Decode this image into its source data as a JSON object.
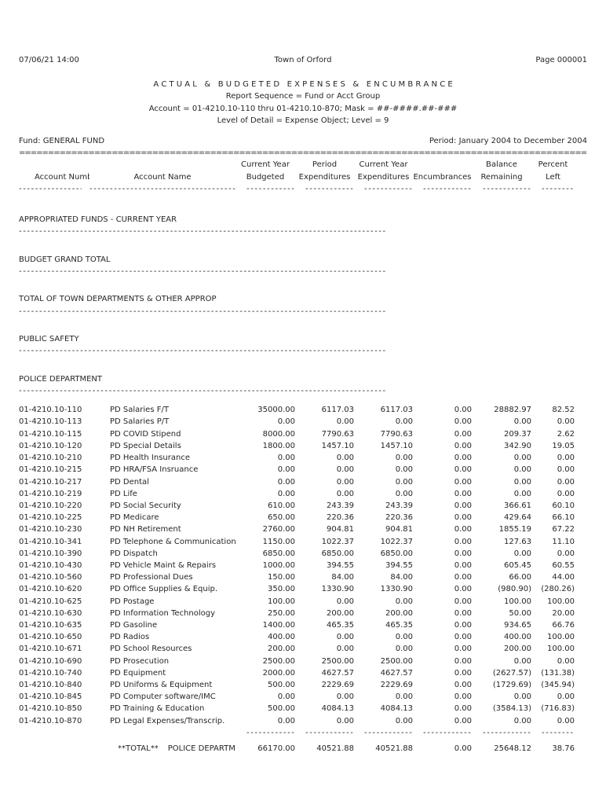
{
  "chars": {
    "dash": "-",
    "equals": "="
  },
  "header": {
    "datetime": "07/06/21 14:00",
    "town": "Town of Orford",
    "page": "Page 000001",
    "title": "A C T U A L   &   B U D G E T E D   E X P E N S E S   &   E N C U M B R A N C E",
    "sequence": "Report Sequence = Fund or Acct Group",
    "account_range": "Account = 01-4210.10-110 thru 01-4210.10-870; Mask = ##-####.##-###",
    "level_detail": "Level of Detail = Expense Object; Level = 9",
    "fund": "Fund: GENERAL FUND",
    "period": "Period: January 2004 to December 2004"
  },
  "table": {
    "columns": [
      {
        "line1": "",
        "line2": "Account Number"
      },
      {
        "line1": "",
        "line2": "Account Name"
      },
      {
        "line1": "Current Year",
        "line2": "Budgeted"
      },
      {
        "line1": "Period",
        "line2": "Expenditures"
      },
      {
        "line1": "Current Year",
        "line2": "Expenditures"
      },
      {
        "line1": "",
        "line2": "Encumbrances"
      },
      {
        "line1": "Balance",
        "line2": "Remaining"
      },
      {
        "line1": "Percent",
        "line2": "Left"
      }
    ],
    "sections": [
      "APPROPRIATED FUNDS - CURRENT YEAR",
      "BUDGET GRAND TOTAL",
      "TOTAL OF TOWN DEPARTMENTS & OTHER APPROP",
      "PUBLIC SAFETY",
      "POLICE DEPARTMENT"
    ],
    "rows": [
      [
        "01-4210.10-110",
        "PD Salaries F/T",
        "35000.00",
        "6117.03",
        "6117.03",
        "0.00",
        "28882.97",
        "82.52"
      ],
      [
        "01-4210.10-113",
        "PD Salaries P/T",
        "0.00",
        "0.00",
        "0.00",
        "0.00",
        "0.00",
        "0.00"
      ],
      [
        "01-4210.10-115",
        "PD COVID Stipend",
        "8000.00",
        "7790.63",
        "7790.63",
        "0.00",
        "209.37",
        "2.62"
      ],
      [
        "01-4210.10-120",
        "PD Special Details",
        "1800.00",
        "1457.10",
        "1457.10",
        "0.00",
        "342.90",
        "19.05"
      ],
      [
        "01-4210.10-210",
        "PD Health Insurance",
        "0.00",
        "0.00",
        "0.00",
        "0.00",
        "0.00",
        "0.00"
      ],
      [
        "01-4210.10-215",
        "PD HRA/FSA Insruance",
        "0.00",
        "0.00",
        "0.00",
        "0.00",
        "0.00",
        "0.00"
      ],
      [
        "01-4210.10-217",
        "PD Dental",
        "0.00",
        "0.00",
        "0.00",
        "0.00",
        "0.00",
        "0.00"
      ],
      [
        "01-4210.10-219",
        "PD Life",
        "0.00",
        "0.00",
        "0.00",
        "0.00",
        "0.00",
        "0.00"
      ],
      [
        "01-4210.10-220",
        "PD Social Security",
        "610.00",
        "243.39",
        "243.39",
        "0.00",
        "366.61",
        "60.10"
      ],
      [
        "01-4210.10-225",
        "PD Medicare",
        "650.00",
        "220.36",
        "220.36",
        "0.00",
        "429.64",
        "66.10"
      ],
      [
        "01-4210.10-230",
        "PD NH Retirement",
        "2760.00",
        "904.81",
        "904.81",
        "0.00",
        "1855.19",
        "67.22"
      ],
      [
        "01-4210.10-341",
        "PD Telephone & Communication",
        "1150.00",
        "1022.37",
        "1022.37",
        "0.00",
        "127.63",
        "11.10"
      ],
      [
        "01-4210.10-390",
        "PD Dispatch",
        "6850.00",
        "6850.00",
        "6850.00",
        "0.00",
        "0.00",
        "0.00"
      ],
      [
        "01-4210.10-430",
        "PD Vehicle Maint & Repairs",
        "1000.00",
        "394.55",
        "394.55",
        "0.00",
        "605.45",
        "60.55"
      ],
      [
        "01-4210.10-560",
        "PD Professional Dues",
        "150.00",
        "84.00",
        "84.00",
        "0.00",
        "66.00",
        "44.00"
      ],
      [
        "01-4210.10-620",
        "PD Office Supplies & Equip.",
        "350.00",
        "1330.90",
        "1330.90",
        "0.00",
        "(980.90)",
        "(280.26)"
      ],
      [
        "01-4210.10-625",
        "PD Postage",
        "100.00",
        "0.00",
        "0.00",
        "0.00",
        "100.00",
        "100.00"
      ],
      [
        "01-4210.10-630",
        "PD Information Technology",
        "250.00",
        "200.00",
        "200.00",
        "0.00",
        "50.00",
        "20.00"
      ],
      [
        "01-4210.10-635",
        "PD Gasoline",
        "1400.00",
        "465.35",
        "465.35",
        "0.00",
        "934.65",
        "66.76"
      ],
      [
        "01-4210.10-650",
        "PD Radios",
        "400.00",
        "0.00",
        "0.00",
        "0.00",
        "400.00",
        "100.00"
      ],
      [
        "01-4210.10-671",
        "PD School Resources",
        "200.00",
        "0.00",
        "0.00",
        "0.00",
        "200.00",
        "100.00"
      ],
      [
        "01-4210.10-690",
        "PD Prosecution",
        "2500.00",
        "2500.00",
        "2500.00",
        "0.00",
        "0.00",
        "0.00"
      ],
      [
        "01-4210.10-740",
        "PD Equipment",
        "2000.00",
        "4627.57",
        "4627.57",
        "0.00",
        "(2627.57)",
        "(131.38)"
      ],
      [
        "01-4210.10-840",
        "PD Uniforms & Equipment",
        "500.00",
        "2229.69",
        "2229.69",
        "0.00",
        "(1729.69)",
        "(345.94)"
      ],
      [
        "01-4210.10-845",
        "PD Computer software/IMC",
        "0.00",
        "0.00",
        "0.00",
        "0.00",
        "0.00",
        "0.00"
      ],
      [
        "01-4210.10-850",
        "PD Training & Education",
        "500.00",
        "4084.13",
        "4084.13",
        "0.00",
        "(3584.13)",
        "(716.83)"
      ],
      [
        "01-4210.10-870",
        "PD Legal Expenses/Transcrip.",
        "0.00",
        "0.00",
        "0.00",
        "0.00",
        "0.00",
        "0.00"
      ]
    ],
    "total": {
      "label": "**TOTAL**",
      "department": "POLICE DEPARTMENT",
      "values": [
        "66170.00",
        "40521.88",
        "40521.88",
        "0.00",
        "25648.12",
        "38.76"
      ]
    }
  }
}
